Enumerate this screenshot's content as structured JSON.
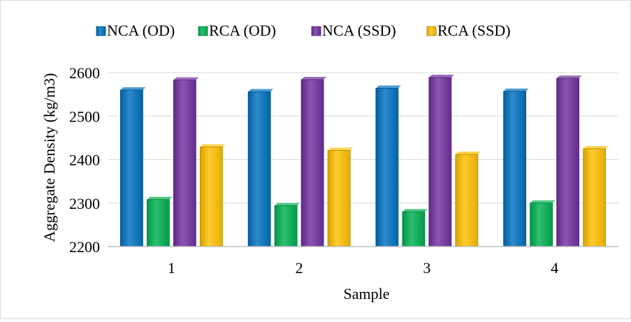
{
  "chart_data": {
    "type": "bar",
    "title": "",
    "xlabel": "Sample",
    "ylabel": "Aggregate Density (kg/m3)",
    "categories": [
      "1",
      "2",
      "3",
      "4"
    ],
    "series": [
      {
        "name": "NCA (OD)",
        "color": "#0070c0",
        "values": [
          2560,
          2556,
          2564,
          2557
        ]
      },
      {
        "name": "RCA (OD)",
        "color": "#00b050",
        "values": [
          2308,
          2294,
          2280,
          2300
        ]
      },
      {
        "name": "NCA (SSD)",
        "color": "#7030a0",
        "values": [
          2583,
          2584,
          2589,
          2587
        ]
      },
      {
        "name": "RCA (SSD)",
        "color": "#ffc000",
        "values": [
          2429,
          2421,
          2412,
          2425
        ]
      }
    ],
    "ylim": [
      2200,
      2600
    ],
    "yticks": [
      "2200",
      "2300",
      "2400",
      "2500",
      "2600"
    ],
    "grid": true,
    "legend_position": "top"
  }
}
